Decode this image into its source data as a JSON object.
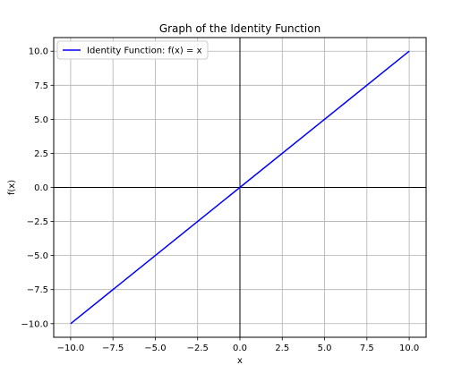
{
  "chart_data": {
    "type": "line",
    "title": "Graph of the Identity Function",
    "xlabel": "x",
    "ylabel": "f(x)",
    "xlim": [
      -11,
      11
    ],
    "ylim": [
      -11,
      11
    ],
    "xticks": [
      -10.0,
      -7.5,
      -5.0,
      -2.5,
      0.0,
      2.5,
      5.0,
      7.5,
      10.0
    ],
    "yticks": [
      -10.0,
      -7.5,
      -5.0,
      -2.5,
      0.0,
      2.5,
      5.0,
      7.5,
      10.0
    ],
    "xtick_labels": [
      "−10.0",
      "−7.5",
      "−5.0",
      "−2.5",
      "0.0",
      "2.5",
      "5.0",
      "7.5",
      "10.0"
    ],
    "ytick_labels": [
      "−10.0",
      "−7.5",
      "−5.0",
      "−2.5",
      "0.0",
      "2.5",
      "5.0",
      "7.5",
      "10.0"
    ],
    "grid": true,
    "reference_lines": {
      "x": 0,
      "y": 0,
      "color": "#000000"
    },
    "legend": {
      "position": "top-left"
    },
    "series": [
      {
        "name": "Identity Function: f(x) = x",
        "color": "#0000ff",
        "x": [
          -10,
          10
        ],
        "y": [
          -10,
          10
        ]
      }
    ]
  }
}
